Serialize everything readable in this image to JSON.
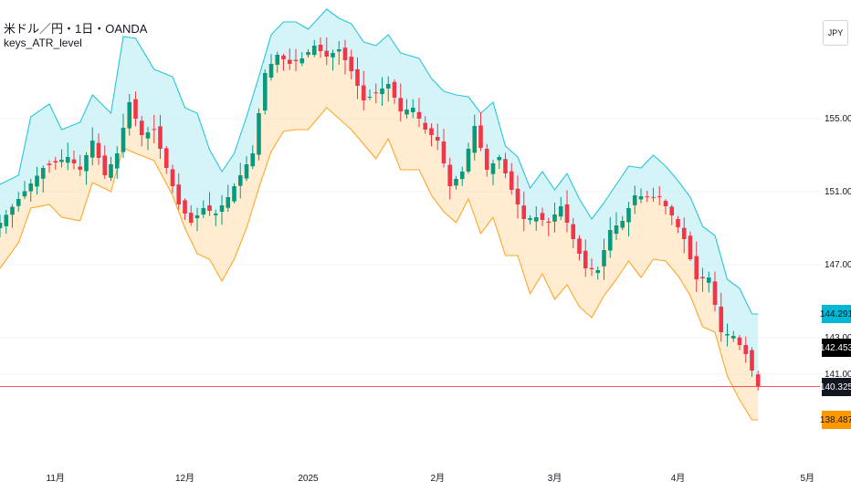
{
  "legend": {
    "symbol": "米ドル／円・1日・OANDA",
    "indicator": "keys_ATR_level"
  },
  "currency_badge": "JPY",
  "price_tags": [
    {
      "value": 144.291,
      "label": "144.291",
      "bg": "#00b8d4",
      "fg": "#131722"
    },
    {
      "value": 142.453,
      "label": "142.453",
      "bg": "#000000",
      "fg": "#ffffff"
    },
    {
      "value": 140.325,
      "label": "140.325",
      "bg": "#131722",
      "fg": "#ffffff"
    },
    {
      "value": 138.487,
      "label": "138.487",
      "bg": "#ff9800",
      "fg": "#131722"
    }
  ],
  "colors": {
    "up": "#089981",
    "down": "#f23645",
    "upper_band": "#26c6da",
    "lower_band": "#ffa726",
    "upper_fill": "#b2ebf2",
    "lower_fill": "#ffe0b2",
    "last_price_line": "#f7525f",
    "grid": "#f0f3fa"
  },
  "chart_data": {
    "type": "candlestick",
    "title": "",
    "y_axis": {
      "range": [
        136.0,
        161.5
      ],
      "ticks": [
        {
          "value": 155,
          "label": "155.000"
        },
        {
          "value": 151,
          "label": "151.000"
        },
        {
          "value": 147,
          "label": "147.000"
        },
        {
          "value": 143,
          "label": "143.000"
        },
        {
          "value": 141,
          "label": "141.000"
        }
      ]
    },
    "x_axis": {
      "ticks": [
        {
          "index": 9,
          "label": "11月"
        },
        {
          "index": 30,
          "label": "12月"
        },
        {
          "index": 50,
          "label": "2025"
        },
        {
          "index": 71,
          "label": "2月"
        },
        {
          "index": 90,
          "label": "3月"
        },
        {
          "index": 110,
          "label": "4月"
        },
        {
          "index": 131,
          "label": "5月"
        }
      ],
      "bar_count": 124,
      "axis_slots": 134
    },
    "last_price": 140.325,
    "series_points": {
      "close": [
        [
          0,
          149.3
        ],
        [
          3,
          150.6
        ],
        [
          7,
          152.3
        ],
        [
          11,
          152.9
        ],
        [
          13,
          152.2
        ],
        [
          15,
          153.8
        ],
        [
          17,
          151.9
        ],
        [
          19,
          153.1
        ],
        [
          21,
          155.9
        ],
        [
          23,
          154.1
        ],
        [
          25,
          154.4
        ],
        [
          27,
          152.3
        ],
        [
          29,
          150.3
        ],
        [
          31,
          149.3
        ],
        [
          33,
          150.1
        ],
        [
          35,
          149.8
        ],
        [
          37,
          150.7
        ],
        [
          39,
          151.9
        ],
        [
          41,
          153.1
        ],
        [
          43,
          157.5
        ],
        [
          45,
          158.5
        ],
        [
          47,
          158.0
        ],
        [
          49,
          158.3
        ],
        [
          51,
          159.0
        ],
        [
          53,
          158.4
        ],
        [
          55,
          158.8
        ],
        [
          57,
          157.6
        ],
        [
          59,
          156.0
        ],
        [
          61,
          156.4
        ],
        [
          63,
          156.9
        ],
        [
          65,
          155.4
        ],
        [
          67,
          155.6
        ],
        [
          69,
          154.4
        ],
        [
          71,
          153.8
        ],
        [
          73,
          151.3
        ],
        [
          75,
          152.1
        ],
        [
          77,
          154.6
        ],
        [
          79,
          152.2
        ],
        [
          81,
          152.9
        ],
        [
          83,
          151.1
        ],
        [
          85,
          149.5
        ],
        [
          87,
          149.6
        ],
        [
          89,
          149.3
        ],
        [
          91,
          150.2
        ],
        [
          93,
          148.4
        ],
        [
          95,
          146.8
        ],
        [
          97,
          146.7
        ],
        [
          99,
          148.9
        ],
        [
          101,
          149.4
        ],
        [
          103,
          150.8
        ],
        [
          105,
          150.7
        ],
        [
          107,
          150.7
        ],
        [
          109,
          149.7
        ],
        [
          111,
          148.4
        ],
        [
          113,
          146.2
        ],
        [
          115,
          146.3
        ],
        [
          117,
          143.3
        ],
        [
          119,
          143.1
        ],
        [
          121,
          142.1
        ],
        [
          123,
          140.3
        ]
      ],
      "upper": [
        [
          0,
          151.4
        ],
        [
          3,
          151.9
        ],
        [
          5,
          155.1
        ],
        [
          8,
          155.8
        ],
        [
          10,
          154.4
        ],
        [
          13,
          154.8
        ],
        [
          15,
          156.3
        ],
        [
          18,
          155.3
        ],
        [
          20,
          159.5
        ],
        [
          22,
          159.4
        ],
        [
          25,
          157.7
        ],
        [
          28,
          157.3
        ],
        [
          30,
          155.6
        ],
        [
          32,
          155.3
        ],
        [
          34,
          153.3
        ],
        [
          36,
          152.1
        ],
        [
          38,
          153.1
        ],
        [
          40,
          155.1
        ],
        [
          42,
          157.3
        ],
        [
          44,
          159.6
        ],
        [
          46,
          160.3
        ],
        [
          48,
          160.3
        ],
        [
          50,
          159.9
        ],
        [
          53,
          161.0
        ],
        [
          55,
          160.5
        ],
        [
          57,
          160.2
        ],
        [
          59,
          159.2
        ],
        [
          61,
          159.0
        ],
        [
          63,
          159.6
        ],
        [
          65,
          158.6
        ],
        [
          68,
          158.3
        ],
        [
          70,
          157.2
        ],
        [
          72,
          156.5
        ],
        [
          74,
          156.3
        ],
        [
          76,
          156.2
        ],
        [
          78,
          155.3
        ],
        [
          80,
          155.9
        ],
        [
          82,
          153.5
        ],
        [
          84,
          152.9
        ],
        [
          86,
          151.2
        ],
        [
          88,
          152.1
        ],
        [
          90,
          151.1
        ],
        [
          92,
          152.0
        ],
        [
          94,
          150.6
        ],
        [
          96,
          149.5
        ],
        [
          98,
          150.4
        ],
        [
          100,
          151.4
        ],
        [
          102,
          152.4
        ],
        [
          104,
          152.3
        ],
        [
          106,
          153.0
        ],
        [
          108,
          152.4
        ],
        [
          110,
          151.6
        ],
        [
          112,
          150.7
        ],
        [
          114,
          149.1
        ],
        [
          116,
          148.6
        ],
        [
          118,
          146.2
        ],
        [
          120,
          145.7
        ],
        [
          122,
          144.3
        ]
      ],
      "lower": [
        [
          0,
          146.8
        ],
        [
          3,
          148.2
        ],
        [
          5,
          150.1
        ],
        [
          8,
          150.3
        ],
        [
          10,
          149.6
        ],
        [
          13,
          149.4
        ],
        [
          15,
          151.5
        ],
        [
          18,
          151.0
        ],
        [
          20,
          153.4
        ],
        [
          22,
          153.1
        ],
        [
          25,
          152.7
        ],
        [
          28,
          150.8
        ],
        [
          30,
          149.0
        ],
        [
          32,
          147.6
        ],
        [
          34,
          147.3
        ],
        [
          36,
          146.1
        ],
        [
          38,
          147.3
        ],
        [
          40,
          149.0
        ],
        [
          42,
          151.2
        ],
        [
          44,
          153.2
        ],
        [
          46,
          154.3
        ],
        [
          48,
          154.4
        ],
        [
          50,
          154.4
        ],
        [
          53,
          155.6
        ],
        [
          55,
          155.0
        ],
        [
          57,
          154.4
        ],
        [
          59,
          153.6
        ],
        [
          61,
          152.8
        ],
        [
          63,
          153.9
        ],
        [
          65,
          152.2
        ],
        [
          68,
          152.2
        ],
        [
          70,
          150.8
        ],
        [
          72,
          149.9
        ],
        [
          74,
          149.3
        ],
        [
          76,
          150.6
        ],
        [
          78,
          148.7
        ],
        [
          80,
          149.6
        ],
        [
          82,
          147.5
        ],
        [
          84,
          147.5
        ],
        [
          86,
          145.4
        ],
        [
          88,
          146.5
        ],
        [
          90,
          145.1
        ],
        [
          92,
          145.9
        ],
        [
          94,
          144.7
        ],
        [
          96,
          144.1
        ],
        [
          98,
          145.3
        ],
        [
          100,
          146.2
        ],
        [
          102,
          147.2
        ],
        [
          104,
          146.3
        ],
        [
          106,
          147.3
        ],
        [
          108,
          147.2
        ],
        [
          110,
          146.4
        ],
        [
          112,
          145.3
        ],
        [
          114,
          143.6
        ],
        [
          116,
          143.3
        ],
        [
          118,
          140.9
        ],
        [
          120,
          139.6
        ],
        [
          122,
          138.5
        ]
      ],
      "upper_band_label_value": 144.291,
      "lower_band_label_value": 138.487
    }
  }
}
